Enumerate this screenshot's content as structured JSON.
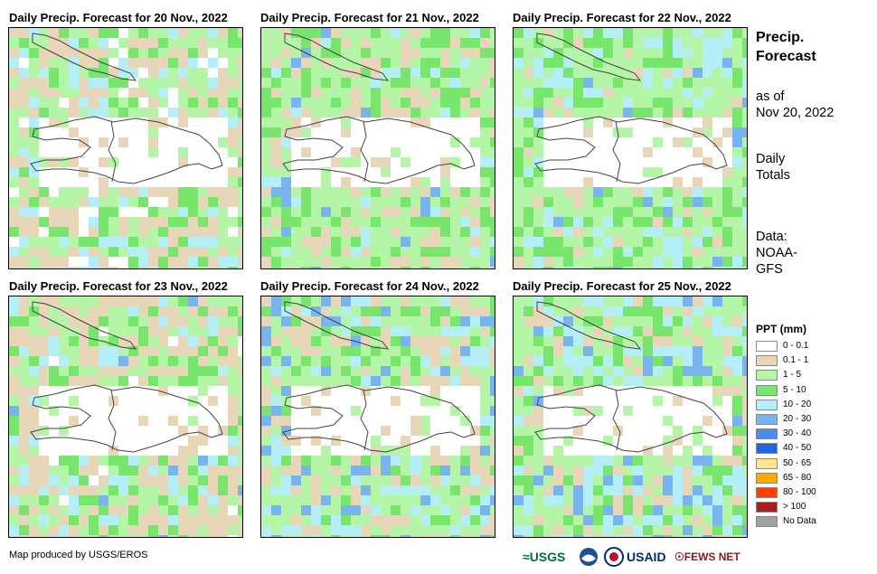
{
  "panels": [
    {
      "title": "Daily Precip. Forecast for 20 Nov., 2022"
    },
    {
      "title": "Daily Precip. Forecast for 21 Nov., 2022"
    },
    {
      "title": "Daily Precip. Forecast for 22 Nov., 2022"
    },
    {
      "title": "Daily Precip. Forecast for 23 Nov., 2022"
    },
    {
      "title": "Daily Precip. Forecast for 24 Nov., 2022"
    },
    {
      "title": "Daily Precip. Forecast for 25 Nov., 2022"
    }
  ],
  "side": {
    "title_line1": "Precip.",
    "title_line2": "Forecast",
    "asof_line1": "as of",
    "asof_line2": "Nov 20, 2022",
    "daily_line1": "Daily",
    "daily_line2": "Totals",
    "data_line1": "Data:",
    "data_line2": "NOAA-",
    "data_line3": "GFS"
  },
  "legend": {
    "title": "PPT (mm)",
    "items": [
      {
        "label": "0 - 0.1",
        "color": "#ffffff"
      },
      {
        "label": "0.1 - 1",
        "color": "#e8d6b8"
      },
      {
        "label": "1 - 5",
        "color": "#b4f5a8"
      },
      {
        "label": "5 - 10",
        "color": "#78e66c"
      },
      {
        "label": "10 - 20",
        "color": "#b4eef7"
      },
      {
        "label": "20 - 30",
        "color": "#78b4f0"
      },
      {
        "label": "30 - 40",
        "color": "#4b8ceb"
      },
      {
        "label": "40 - 50",
        "color": "#2364e6"
      },
      {
        "label": "50 - 65",
        "color": "#ffe68c"
      },
      {
        "label": "65 - 80",
        "color": "#ffaa00"
      },
      {
        "label": "80 - 100",
        "color": "#ff4000"
      },
      {
        "label": "> 100",
        "color": "#aa1e1e"
      },
      {
        "label": "No Data",
        "color": "#a0a0a0"
      }
    ]
  },
  "footer": {
    "credit": "Map produced by USGS/EROS"
  },
  "logos": {
    "usgs": "USGS",
    "usaid": "USAID",
    "fewsnet": "FEWS NET"
  }
}
